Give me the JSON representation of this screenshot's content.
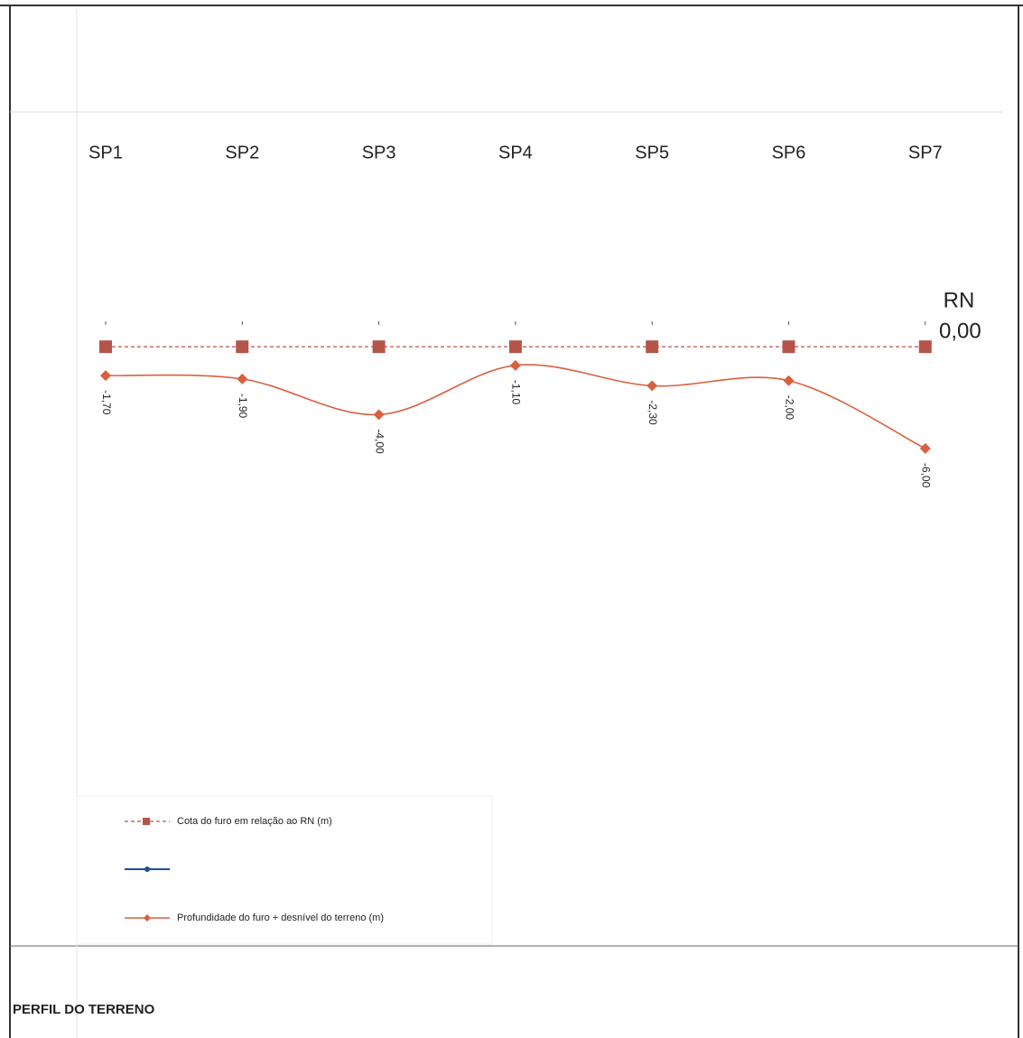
{
  "chart_data": {
    "type": "line",
    "title": "PERFIL DO TERRENO",
    "categories": [
      "SP1",
      "SP2",
      "SP3",
      "SP4",
      "SP5",
      "SP6",
      "SP7"
    ],
    "ylim": [
      -35,
      14
    ],
    "annotations": [
      "RN",
      "0,00"
    ],
    "series": [
      {
        "name": "Cota do furo em relação ao RN (m)",
        "color": "#b5554a",
        "style": "dashed",
        "marker": "square",
        "values": [
          0,
          0,
          0,
          0,
          0,
          0,
          0
        ]
      },
      {
        "name": "Profundidade do furo + desnível do terreno (m)",
        "color": "#d9603e",
        "style": "smooth",
        "marker": "diamond",
        "values": [
          -1.7,
          -1.9,
          -4.0,
          -1.1,
          -2.3,
          -2.0,
          -6.0
        ],
        "value_labels": [
          "-1,70",
          "-1,90",
          "-4,00",
          "-1,10",
          "-2,30",
          "-2,00",
          "-6,00"
        ]
      }
    ]
  }
}
